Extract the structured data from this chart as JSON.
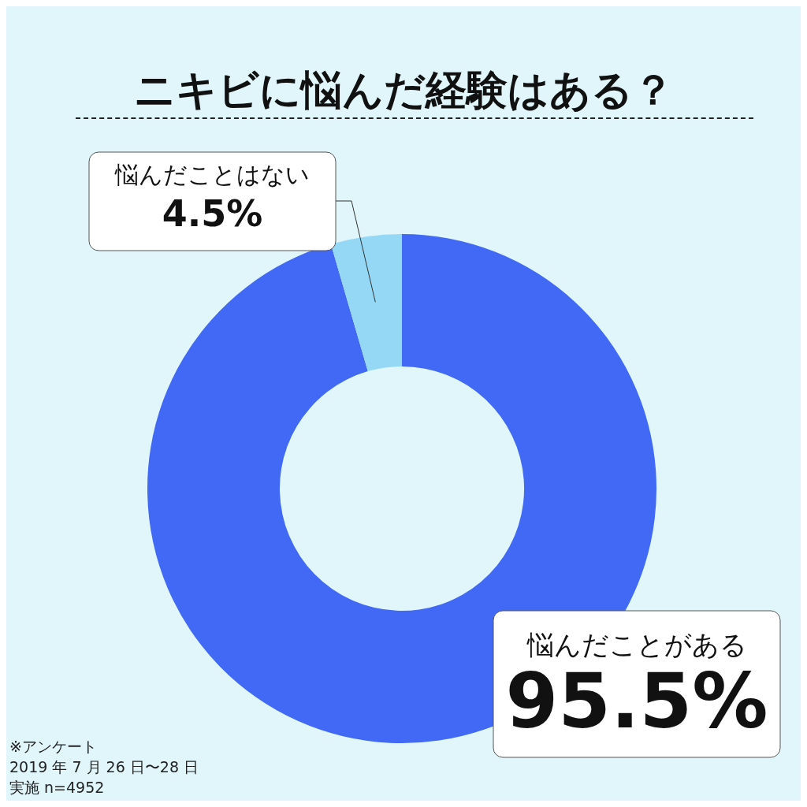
{
  "chart_data": {
    "type": "donut",
    "title": "ニキビに悩んだ経験はある？",
    "categories": [
      "悩んだことがある",
      "悩んだことはない"
    ],
    "values": [
      95.5,
      4.5
    ],
    "colors": [
      "#4169f5",
      "#94d8f5"
    ],
    "value_labels": [
      "95.5%",
      "4.5%"
    ],
    "legend": false,
    "annotations": [
      "※アンケート",
      "2019 年 7 月 26 日〜28 日",
      "実施 n=4952"
    ]
  }
}
